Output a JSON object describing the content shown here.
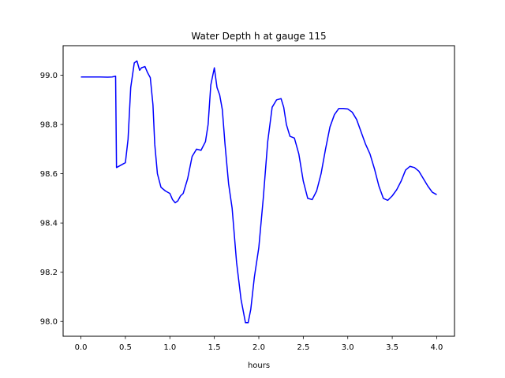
{
  "chart_data": {
    "type": "line",
    "title": "Water Depth h at gauge 115",
    "xlabel": "hours",
    "ylabel": "",
    "xlim": [
      -0.2,
      4.2
    ],
    "ylim": [
      97.94,
      99.12
    ],
    "xticks": [
      0.0,
      0.5,
      1.0,
      1.5,
      2.0,
      2.5,
      3.0,
      3.5,
      4.0
    ],
    "xtick_labels": [
      "0.0",
      "0.5",
      "1.0",
      "1.5",
      "2.0",
      "2.5",
      "3.0",
      "3.5",
      "4.0"
    ],
    "yticks": [
      98.0,
      98.2,
      98.4,
      98.6,
      98.8,
      99.0
    ],
    "ytick_labels": [
      "98.0",
      "98.2",
      "98.4",
      "98.6",
      "98.8",
      "99.0"
    ],
    "grid": false,
    "series": [
      {
        "color": "#0000ff",
        "x": [
          0.0,
          0.1,
          0.2,
          0.3,
          0.35,
          0.39,
          0.4,
          0.41,
          0.45,
          0.5,
          0.53,
          0.56,
          0.6,
          0.63,
          0.66,
          0.68,
          0.72,
          0.75,
          0.78,
          0.81,
          0.83,
          0.86,
          0.9,
          0.95,
          1.0,
          1.03,
          1.06,
          1.09,
          1.12,
          1.15,
          1.2,
          1.25,
          1.3,
          1.35,
          1.4,
          1.43,
          1.46,
          1.5,
          1.53,
          1.56,
          1.59,
          1.62,
          1.66,
          1.7,
          1.75,
          1.8,
          1.85,
          1.88,
          1.91,
          1.95,
          2.0,
          2.05,
          2.1,
          2.15,
          2.2,
          2.25,
          2.28,
          2.31,
          2.35,
          2.4,
          2.45,
          2.5,
          2.55,
          2.6,
          2.65,
          2.7,
          2.75,
          2.8,
          2.85,
          2.9,
          2.95,
          3.0,
          3.05,
          3.1,
          3.15,
          3.2,
          3.25,
          3.3,
          3.35,
          3.4,
          3.45,
          3.5,
          3.55,
          3.6,
          3.65,
          3.7,
          3.75,
          3.8,
          3.85,
          3.9,
          3.95,
          4.0
        ],
        "values": [
          98.993,
          98.993,
          98.993,
          98.992,
          98.993,
          98.996,
          98.625,
          98.627,
          98.635,
          98.645,
          98.74,
          98.95,
          99.05,
          99.058,
          99.02,
          99.03,
          99.035,
          99.01,
          98.99,
          98.88,
          98.72,
          98.6,
          98.545,
          98.53,
          98.52,
          98.495,
          98.482,
          98.49,
          98.51,
          98.52,
          98.58,
          98.67,
          98.7,
          98.695,
          98.73,
          98.8,
          98.96,
          99.03,
          98.95,
          98.92,
          98.86,
          98.72,
          98.56,
          98.46,
          98.24,
          98.09,
          97.995,
          97.995,
          98.05,
          98.18,
          98.3,
          98.5,
          98.73,
          98.87,
          98.9,
          98.905,
          98.87,
          98.8,
          98.752,
          98.745,
          98.68,
          98.57,
          98.5,
          98.495,
          98.53,
          98.6,
          98.7,
          98.79,
          98.84,
          98.865,
          98.865,
          98.863,
          98.85,
          98.82,
          98.77,
          98.72,
          98.68,
          98.62,
          98.55,
          98.5,
          98.492,
          98.51,
          98.535,
          98.57,
          98.615,
          98.63,
          98.625,
          98.61,
          98.58,
          98.55,
          98.525,
          98.515
        ]
      }
    ]
  }
}
